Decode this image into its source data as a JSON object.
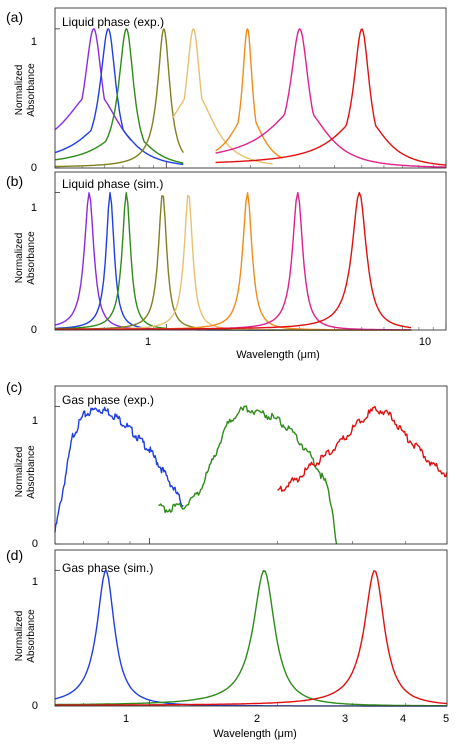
{
  "chart_data": [
    {
      "type": "line",
      "panel_label": "(a)",
      "title": "Liquid phase (exp.)",
      "ylabel": "Normalized Absorbance",
      "xscale": "log",
      "xlim": [
        0.4,
        10
      ],
      "ylim": [
        0,
        1.15
      ],
      "yticks": [
        0,
        1
      ],
      "ytick_labels": [
        "0",
        "1"
      ],
      "series": [
        {
          "color": "#8a2be2",
          "peak": 0.55,
          "width": 0.05,
          "baseline": 0.55,
          "range": [
            0.4,
            0.75
          ]
        },
        {
          "color": "#1f3fe0",
          "peak": 0.62,
          "width": 0.05,
          "baseline": 0.35,
          "range": [
            0.4,
            1.15
          ]
        },
        {
          "color": "#2e8b1a",
          "peak": 0.72,
          "width": 0.055,
          "baseline": 0.28,
          "range": [
            0.4,
            1.15
          ]
        },
        {
          "color": "#808020",
          "peak": 0.98,
          "width": 0.06,
          "baseline": 0.12,
          "range": [
            0.4,
            1.15
          ]
        },
        {
          "color": "#e8c070",
          "peak": 1.25,
          "width": 0.09,
          "baseline": 0.55,
          "range": [
            1.05,
            2.4
          ]
        },
        {
          "color": "#f08c1a",
          "peak": 1.95,
          "width": 0.1,
          "baseline": 0.4,
          "range": [
            1.5,
            2.6
          ]
        },
        {
          "color": "#e0208c",
          "peak": 3.0,
          "width": 0.28,
          "baseline": 0.45,
          "range": [
            1.5,
            10
          ]
        },
        {
          "color": "#e01010",
          "peak": 5.0,
          "width": 0.4,
          "baseline": 0.38,
          "range": [
            1.5,
            10
          ]
        }
      ],
      "x": [
        0.4,
        0.45,
        0.5,
        0.55,
        0.6,
        0.65,
        0.7,
        0.75,
        0.8,
        0.9,
        1.0,
        1.1,
        1.2,
        1.4,
        1.6,
        1.8,
        2.0,
        2.3,
        2.6,
        3.0,
        3.5,
        4.0,
        5.0,
        6.0,
        7.0,
        8.0,
        10.0
      ]
    },
    {
      "type": "line",
      "panel_label": "(b)",
      "title": "Liquid phase (sim.)",
      "ylabel": "Normalized Absorbance",
      "xlabel": "Wavelength (μm)",
      "xscale": "log",
      "xlim": [
        0.4,
        10
      ],
      "ylim": [
        0,
        1.15
      ],
      "yticks": [
        0,
        1
      ],
      "ytick_labels": [
        "0",
        "1"
      ],
      "xticks": [
        1,
        10
      ],
      "xtick_labels": [
        "1",
        "10"
      ],
      "series": [
        {
          "color": "#8a2be2",
          "peak": 0.53,
          "width": 0.025,
          "range": [
            0.4,
            7.5
          ]
        },
        {
          "color": "#1f3fe0",
          "peak": 0.63,
          "width": 0.025,
          "range": [
            0.4,
            7.5
          ]
        },
        {
          "color": "#2e8b1a",
          "peak": 0.72,
          "width": 0.03,
          "range": [
            0.4,
            7.5
          ]
        },
        {
          "color": "#808020",
          "peak": 0.97,
          "width": 0.04,
          "range": [
            0.4,
            7.5
          ]
        },
        {
          "color": "#e8c070",
          "peak": 1.2,
          "width": 0.05,
          "range": [
            0.4,
            7.5
          ]
        },
        {
          "color": "#f08c1a",
          "peak": 1.95,
          "width": 0.09,
          "range": [
            0.4,
            7.5
          ]
        },
        {
          "color": "#e0208c",
          "peak": 2.95,
          "width": 0.15,
          "range": [
            0.4,
            7.5
          ]
        },
        {
          "color": "#e01010",
          "peak": 4.9,
          "width": 0.35,
          "range": [
            0.4,
            7.5
          ]
        }
      ],
      "x": [
        0.4,
        0.45,
        0.5,
        0.53,
        0.56,
        0.6,
        0.63,
        0.66,
        0.7,
        0.72,
        0.75,
        0.8,
        0.9,
        0.97,
        1.05,
        1.15,
        1.2,
        1.3,
        1.5,
        1.8,
        1.95,
        2.1,
        2.5,
        2.95,
        3.3,
        4.0,
        4.9,
        5.8,
        7.5
      ]
    },
    {
      "type": "line",
      "panel_label": "(c)",
      "title": "Gas phase (exp.)",
      "ylabel": "Normalized Absorbance",
      "xscale": "log",
      "xlim": [
        0.6,
        5
      ],
      "ylim": [
        0,
        1.15
      ],
      "yticks": [
        0,
        1
      ],
      "ytick_labels": [
        "0",
        "1"
      ],
      "series": [
        {
          "color": "#1f3fe0",
          "x": [
            0.6,
            0.63,
            0.66,
            0.7,
            0.75,
            0.8,
            0.85,
            0.9,
            1.0,
            1.1,
            1.2
          ],
          "values": [
            0.1,
            0.45,
            0.8,
            0.95,
            1.0,
            0.98,
            0.92,
            0.85,
            0.7,
            0.5,
            0.3
          ]
        },
        {
          "color": "#2e8b1a",
          "x": [
            1.05,
            1.1,
            1.2,
            1.3,
            1.4,
            1.5,
            1.6,
            1.7,
            1.8,
            1.9,
            2.0,
            2.2,
            2.4,
            2.6,
            2.7,
            2.75
          ],
          "values": [
            0.28,
            0.27,
            0.29,
            0.38,
            0.6,
            0.85,
            0.97,
            1.0,
            0.98,
            0.95,
            0.92,
            0.8,
            0.65,
            0.45,
            0.25,
            0.0
          ]
        },
        {
          "color": "#e01010",
          "x": [
            2.0,
            2.2,
            2.4,
            2.6,
            2.8,
            3.0,
            3.2,
            3.4,
            3.6,
            3.8,
            4.0,
            4.3,
            4.6,
            5.0
          ],
          "values": [
            0.4,
            0.48,
            0.58,
            0.66,
            0.75,
            0.85,
            0.94,
            1.0,
            0.97,
            0.9,
            0.8,
            0.7,
            0.6,
            0.52
          ]
        }
      ]
    },
    {
      "type": "line",
      "panel_label": "(d)",
      "title": "Gas phase (sim.)",
      "ylabel": "Normalized Absorbance",
      "xlabel": "Wavelength (μm)",
      "xscale": "log",
      "xlim": [
        0.6,
        5
      ],
      "ylim": [
        0,
        1.15
      ],
      "yticks": [
        0,
        1
      ],
      "ytick_labels": [
        "0",
        "1"
      ],
      "xticks": [
        1,
        2,
        3,
        4,
        5
      ],
      "xtick_labels": [
        "1",
        "2",
        "3",
        "4",
        "5"
      ],
      "series": [
        {
          "color": "#1f3fe0",
          "peak": 0.79,
          "width": 0.045,
          "range": [
            0.6,
            5
          ]
        },
        {
          "color": "#2e8b1a",
          "peak": 1.86,
          "width": 0.13,
          "range": [
            0.6,
            5
          ]
        },
        {
          "color": "#e01010",
          "peak": 3.38,
          "width": 0.22,
          "range": [
            0.6,
            5
          ]
        }
      ],
      "x": [
        0.6,
        0.7,
        0.79,
        0.9,
        1.0,
        1.5,
        1.86,
        2.3,
        3.0,
        3.38,
        4.0,
        5.0
      ]
    }
  ]
}
